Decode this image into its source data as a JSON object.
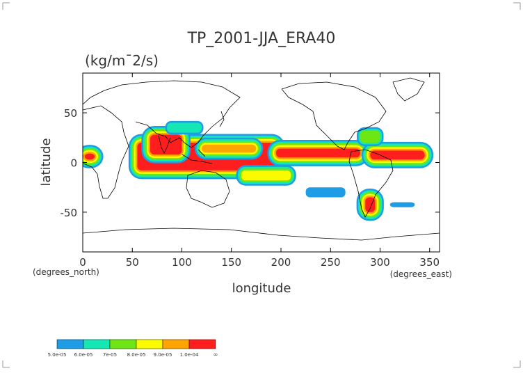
{
  "chart_data": {
    "type": "heatmap",
    "title": "TP_2001-JJA_ERA40",
    "subtitle": "(kg/m¯2/s)",
    "xlabel": "longitude",
    "ylabel": "latitude",
    "x_unit_label": "(degrees_east)",
    "y_unit_label": "(degrees_north)",
    "xlim": [
      0,
      360
    ],
    "ylim": [
      -90,
      90
    ],
    "x_ticks": [
      0,
      50,
      100,
      150,
      200,
      250,
      300,
      350
    ],
    "y_ticks": [
      -50,
      0,
      50
    ],
    "x_tick_labels": [
      "0",
      "50",
      "100",
      "150",
      "200",
      "250",
      "300",
      "350"
    ],
    "y_tick_labels": [
      "-50",
      "0",
      "50"
    ],
    "grid": false,
    "colorbar": {
      "levels": [
        {
          "label": "5.0e-05",
          "value": 5e-05,
          "color": "#1e9ce6"
        },
        {
          "label": "6.0e-05",
          "value": 6e-05,
          "color": "#14e6b4"
        },
        {
          "label": "7e-05",
          "value": 7e-05,
          "color": "#6ee614"
        },
        {
          "label": "8.0e-05",
          "value": 8e-05,
          "color": "#fafa00"
        },
        {
          "label": "9.0e-05",
          "value": 9e-05,
          "color": "#ffa500"
        },
        {
          "label": "1.0e-04",
          "value": 0.0001,
          "color": "#ff1e1e"
        }
      ],
      "end_label": "∞"
    },
    "precip_regions": [
      {
        "lon": [
          55,
          195
        ],
        "lat": [
          -8,
          20
        ],
        "level": 5
      },
      {
        "lon": [
          195,
          280
        ],
        "lat": [
          5,
          14
        ],
        "level": 5
      },
      {
        "lon": [
          290,
          345
        ],
        "lat": [
          3,
          12
        ],
        "level": 5
      },
      {
        "lon": [
          68,
          100
        ],
        "lat": [
          8,
          28
        ],
        "level": 5
      },
      {
        "lon": [
          2,
          12
        ],
        "lat": [
          3,
          9
        ],
        "level": 5
      },
      {
        "lon": [
          120,
          175
        ],
        "lat": [
          10,
          18
        ],
        "level": 4
      },
      {
        "lon": [
          160,
          210
        ],
        "lat": [
          -18,
          -8
        ],
        "level": 3
      },
      {
        "lon": [
          225,
          265
        ],
        "lat": [
          -35,
          -25
        ],
        "level": 0
      },
      {
        "lon": [
          285,
          295
        ],
        "lat": [
          -50,
          -35
        ],
        "level": 5
      },
      {
        "lon": [
          280,
          300
        ],
        "lat": [
          20,
          32
        ],
        "level": 2
      },
      {
        "lon": [
          310,
          335
        ],
        "lat": [
          -45,
          -40
        ],
        "level": 0
      },
      {
        "lon": [
          85,
          120
        ],
        "lat": [
          30,
          40
        ],
        "level": 1
      }
    ]
  }
}
